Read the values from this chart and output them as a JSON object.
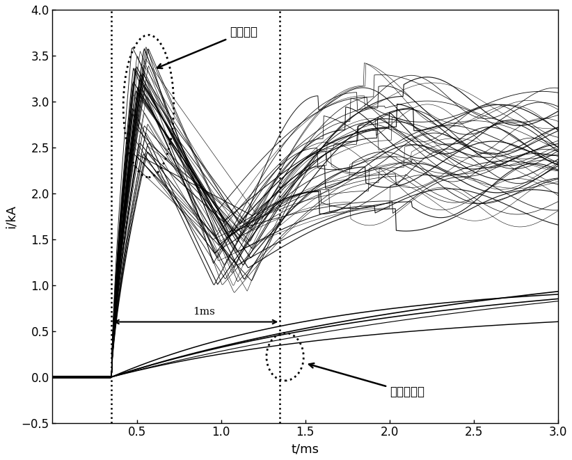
{
  "title": "",
  "xlabel": "t/ms",
  "ylabel": "i/kA",
  "xlim": [
    0,
    3.0
  ],
  "ylim": [
    -0.5,
    4.0
  ],
  "xticks": [
    0.5,
    1.0,
    1.5,
    2.0,
    2.5,
    3.0
  ],
  "yticks": [
    -0.5,
    0,
    0.5,
    1.0,
    1.5,
    2.0,
    2.5,
    3.0,
    3.5,
    4.0
  ],
  "fault_time": 0.35,
  "second_vline": 1.35,
  "annotation_line": "线路故障",
  "annotation_inv": "逆变侧故障",
  "annotation_1ms": "1ms",
  "bg_color": "#ffffff",
  "line_color": "#000000",
  "n_line_faults": 50,
  "n_inv_faults": 5,
  "seed": 42
}
